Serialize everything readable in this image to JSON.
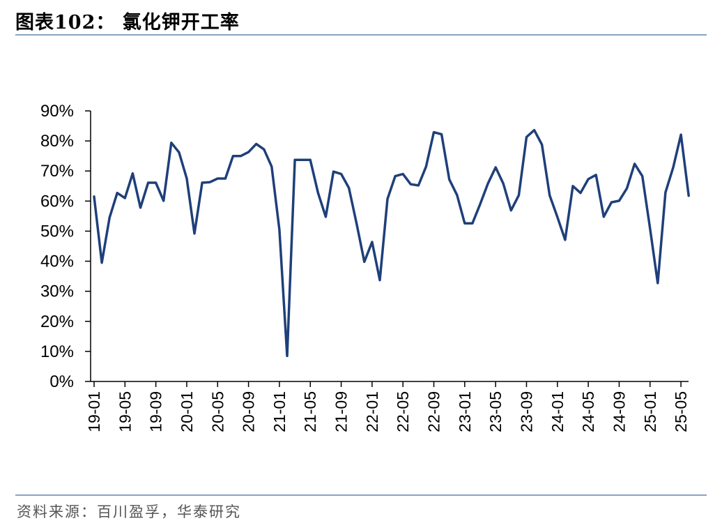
{
  "header": {
    "title": "图表102：  氯化钾开工率"
  },
  "footer": {
    "source": "资料来源：百川盈孚，华泰研究"
  },
  "chart_data": {
    "type": "line",
    "ylim": [
      0,
      0.9
    ],
    "ytick_values": [
      0,
      0.1,
      0.2,
      0.3,
      0.4,
      0.5,
      0.6,
      0.7,
      0.8,
      0.9
    ],
    "ytick_labels": [
      "0%",
      "10%",
      "20%",
      "30%",
      "40%",
      "50%",
      "60%",
      "70%",
      "80%",
      "90%"
    ],
    "xtick_labels": [
      "19-01",
      "19-05",
      "19-09",
      "20-01",
      "20-05",
      "20-09",
      "21-01",
      "21-05",
      "21-09",
      "22-01",
      "22-05",
      "22-09",
      "23-01",
      "23-05",
      "23-09",
      "24-01",
      "24-05",
      "24-09",
      "25-01",
      "25-05"
    ],
    "x": [
      "19-01",
      "19-02",
      "19-03",
      "19-04",
      "19-05",
      "19-06",
      "19-07",
      "19-08",
      "19-09",
      "19-10",
      "19-11",
      "19-12",
      "20-01",
      "20-02",
      "20-03",
      "20-04",
      "20-05",
      "20-06",
      "20-07",
      "20-08",
      "20-09",
      "20-10",
      "20-11",
      "20-12",
      "21-01",
      "21-02",
      "21-03",
      "21-04",
      "21-05",
      "21-06",
      "21-07",
      "21-08",
      "21-09",
      "21-10",
      "21-11",
      "21-12",
      "22-01",
      "22-02",
      "22-03",
      "22-04",
      "22-05",
      "22-06",
      "22-07",
      "22-08",
      "22-09",
      "22-10",
      "22-11",
      "22-12",
      "23-01",
      "23-02",
      "23-03",
      "23-04",
      "23-05",
      "23-06",
      "23-07",
      "23-08",
      "23-09",
      "23-10",
      "23-11",
      "23-12",
      "24-01",
      "24-02",
      "24-03",
      "24-04",
      "24-05",
      "24-06",
      "24-07",
      "24-08",
      "24-09",
      "24-10",
      "24-11",
      "24-12",
      "25-01",
      "25-02",
      "25-03",
      "25-04",
      "25-05",
      "25-06"
    ],
    "series": [
      {
        "values": [
          0.615,
          0.395,
          0.545,
          0.627,
          0.61,
          0.692,
          0.578,
          0.661,
          0.661,
          0.601,
          0.794,
          0.762,
          0.675,
          0.492,
          0.661,
          0.663,
          0.675,
          0.675,
          0.75,
          0.75,
          0.763,
          0.79,
          0.772,
          0.715,
          0.505,
          0.085,
          0.737,
          0.737,
          0.737,
          0.628,
          0.548,
          0.698,
          0.69,
          0.644,
          0.525,
          0.398,
          0.464,
          0.337,
          0.607,
          0.683,
          0.69,
          0.656,
          0.652,
          0.715,
          0.829,
          0.822,
          0.672,
          0.62,
          0.526,
          0.526,
          0.59,
          0.658,
          0.712,
          0.658,
          0.569,
          0.619,
          0.813,
          0.836,
          0.788,
          0.619,
          0.547,
          0.471,
          0.65,
          0.627,
          0.673,
          0.687,
          0.548,
          0.596,
          0.601,
          0.642,
          0.724,
          0.683,
          0.508,
          0.327,
          0.629,
          0.712,
          0.821,
          0.618
        ]
      }
    ],
    "line_color": "#1f3f7a"
  }
}
